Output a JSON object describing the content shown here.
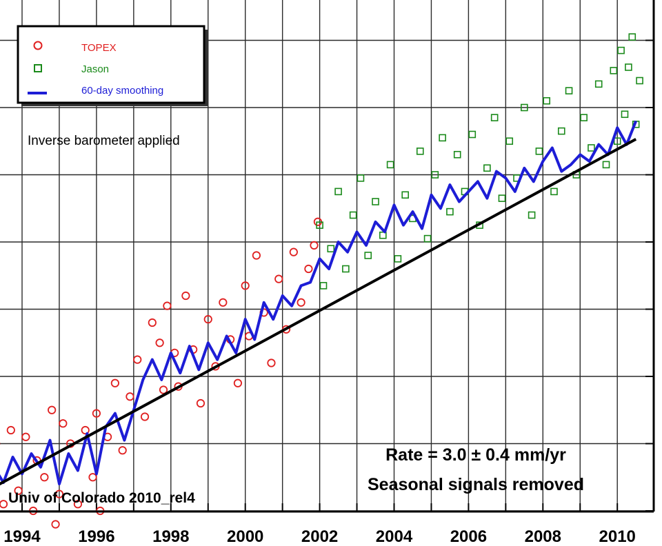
{
  "chart_data": {
    "type": "scatter",
    "title": "",
    "xlabel": "",
    "ylabel": "",
    "xlim": [
      1993.2,
      2010.8
    ],
    "ylim": [
      -24,
      56
    ],
    "x_ticks": [
      1994,
      1996,
      1998,
      2000,
      2002,
      2004,
      2006,
      2008,
      2010
    ],
    "x_tick_labels": [
      "1994",
      "1996",
      "1998",
      "2000",
      "2002",
      "2004",
      "2006",
      "2008",
      "2010"
    ],
    "x_grid": [
      1993,
      1994,
      1995,
      1996,
      1997,
      1998,
      1999,
      2000,
      2001,
      2002,
      2003,
      2004,
      2005,
      2006,
      2007,
      2008,
      2009,
      2010
    ],
    "y_grid": [
      -20,
      -10,
      0,
      10,
      20,
      30,
      40,
      50
    ],
    "grid": true,
    "legend_position": "top-left",
    "legend": [
      {
        "label": "TOPEX",
        "marker": "circle",
        "color": "#e02020"
      },
      {
        "label": "Jason",
        "marker": "square",
        "color": "#1a8a1a"
      },
      {
        "label": "60-day smoothing",
        "marker": "line",
        "color": "#1d1dd6"
      }
    ],
    "annotations": {
      "inverse": "Inverse barometer applied",
      "rate": "Rate = 3.0 ± 0.4 mm/yr",
      "seasonal": "Seasonal signals removed",
      "source": "Univ of Colorado 2010_rel4"
    },
    "colors": {
      "topex": "#e02020",
      "jason": "#1a8a1a",
      "smoothing": "#1d1dd6",
      "trend": "#000000"
    },
    "trend": {
      "slope_mm_per_yr": 3.0,
      "x": [
        1993.2,
        2010.5
      ],
      "y": [
        -16.6,
        35.3
      ]
    },
    "smoothing": {
      "x": [
        1993.25,
        1993.5,
        1993.75,
        1994.0,
        1994.25,
        1994.5,
        1994.75,
        1995.0,
        1995.25,
        1995.5,
        1995.75,
        1996.0,
        1996.25,
        1996.5,
        1996.75,
        1997.0,
        1997.25,
        1997.5,
        1997.75,
        1998.0,
        1998.25,
        1998.5,
        1998.75,
        1999.0,
        1999.25,
        1999.5,
        1999.75,
        2000.0,
        2000.25,
        2000.5,
        2000.75,
        2001.0,
        2001.25,
        2001.5,
        2001.75,
        2002.0,
        2002.25,
        2002.5,
        2002.75,
        2003.0,
        2003.25,
        2003.5,
        2003.75,
        2004.0,
        2004.25,
        2004.5,
        2004.75,
        2005.0,
        2005.25,
        2005.5,
        2005.75,
        2006.0,
        2006.25,
        2006.5,
        2006.75,
        2007.0,
        2007.25,
        2007.5,
        2007.75,
        2008.0,
        2008.25,
        2008.5,
        2008.75,
        2009.0,
        2009.25,
        2009.5,
        2009.75,
        2010.0,
        2010.25,
        2010.5
      ],
      "y": [
        -13.5,
        -15.8,
        -12.0,
        -14.5,
        -11.5,
        -13.5,
        -9.5,
        -16.0,
        -11.5,
        -14.0,
        -8.5,
        -14.5,
        -7.5,
        -5.5,
        -9.5,
        -5.0,
        -0.5,
        2.5,
        -0.5,
        3.5,
        0.5,
        4.5,
        1.0,
        5.0,
        2.5,
        6.0,
        3.5,
        8.5,
        5.5,
        11.0,
        8.5,
        12.0,
        10.5,
        13.5,
        14.0,
        17.5,
        16.0,
        20.0,
        18.5,
        21.5,
        19.5,
        23.0,
        21.5,
        25.5,
        22.5,
        24.5,
        22.0,
        27.0,
        25.0,
        28.5,
        26.0,
        27.5,
        29.0,
        26.5,
        30.5,
        29.5,
        27.5,
        31.0,
        29.0,
        32.0,
        34.0,
        30.5,
        31.5,
        33.0,
        32.0,
        34.5,
        33.0,
        37.0,
        34.5,
        38.0
      ]
    },
    "series": [
      {
        "name": "TOPEX",
        "marker": "circle",
        "x": [
          1993.3,
          1993.5,
          1993.7,
          1993.9,
          1994.1,
          1994.3,
          1994.4,
          1994.6,
          1994.8,
          1994.9,
          1995.0,
          1995.1,
          1995.3,
          1995.5,
          1995.7,
          1995.9,
          1996.0,
          1996.1,
          1996.3,
          1996.5,
          1996.7,
          1996.9,
          1997.1,
          1997.3,
          1997.5,
          1997.7,
          1997.8,
          1997.9,
          1998.1,
          1998.2,
          1998.4,
          1998.6,
          1998.8,
          1999.0,
          1999.2,
          1999.4,
          1999.6,
          1999.8,
          2000.0,
          2000.1,
          2000.3,
          2000.5,
          2000.7,
          2000.9,
          2001.1,
          2001.3,
          2001.5,
          2001.7,
          2001.85,
          2001.95
        ],
        "y": [
          -10.0,
          -19.0,
          -8.0,
          -17.0,
          -9.0,
          -20.0,
          -12.5,
          -15.0,
          -5.0,
          -22.0,
          -17.5,
          -7.0,
          -10.0,
          -19.0,
          -8.0,
          -15.0,
          -5.5,
          -20.0,
          -9.0,
          -1.0,
          -11.0,
          -3.0,
          2.5,
          -6.0,
          8.0,
          5.0,
          -2.0,
          10.5,
          3.5,
          -1.5,
          12.0,
          4.0,
          -4.0,
          8.5,
          1.5,
          11.0,
          5.5,
          -1.0,
          13.5,
          6.0,
          18.0,
          9.5,
          2.0,
          14.5,
          7.0,
          18.5,
          11.0,
          16.0,
          19.5,
          23.0
        ]
      },
      {
        "name": "Jason",
        "marker": "square",
        "x": [
          2002.0,
          2002.1,
          2002.3,
          2002.5,
          2002.7,
          2002.9,
          2003.1,
          2003.3,
          2003.5,
          2003.7,
          2003.9,
          2004.1,
          2004.3,
          2004.5,
          2004.7,
          2004.9,
          2005.1,
          2005.3,
          2005.5,
          2005.7,
          2005.9,
          2006.1,
          2006.3,
          2006.5,
          2006.7,
          2006.9,
          2007.1,
          2007.3,
          2007.5,
          2007.7,
          2007.9,
          2008.1,
          2008.3,
          2008.5,
          2008.7,
          2008.9,
          2009.1,
          2009.3,
          2009.5,
          2009.7,
          2009.9,
          2010.0,
          2010.1,
          2010.2,
          2010.3,
          2010.4,
          2010.5,
          2010.6
        ],
        "y": [
          22.5,
          13.5,
          19.0,
          27.5,
          16.0,
          24.0,
          29.5,
          18.0,
          26.0,
          21.0,
          31.5,
          17.5,
          27.0,
          23.5,
          33.5,
          20.5,
          30.0,
          35.5,
          24.5,
          33.0,
          27.5,
          36.0,
          22.5,
          31.0,
          38.5,
          26.5,
          35.0,
          29.5,
          40.0,
          24.0,
          33.5,
          41.0,
          27.5,
          36.5,
          42.5,
          30.0,
          38.5,
          34.0,
          43.5,
          31.5,
          45.5,
          35.0,
          48.5,
          39.0,
          46.0,
          50.5,
          37.5,
          44.0
        ]
      }
    ]
  }
}
